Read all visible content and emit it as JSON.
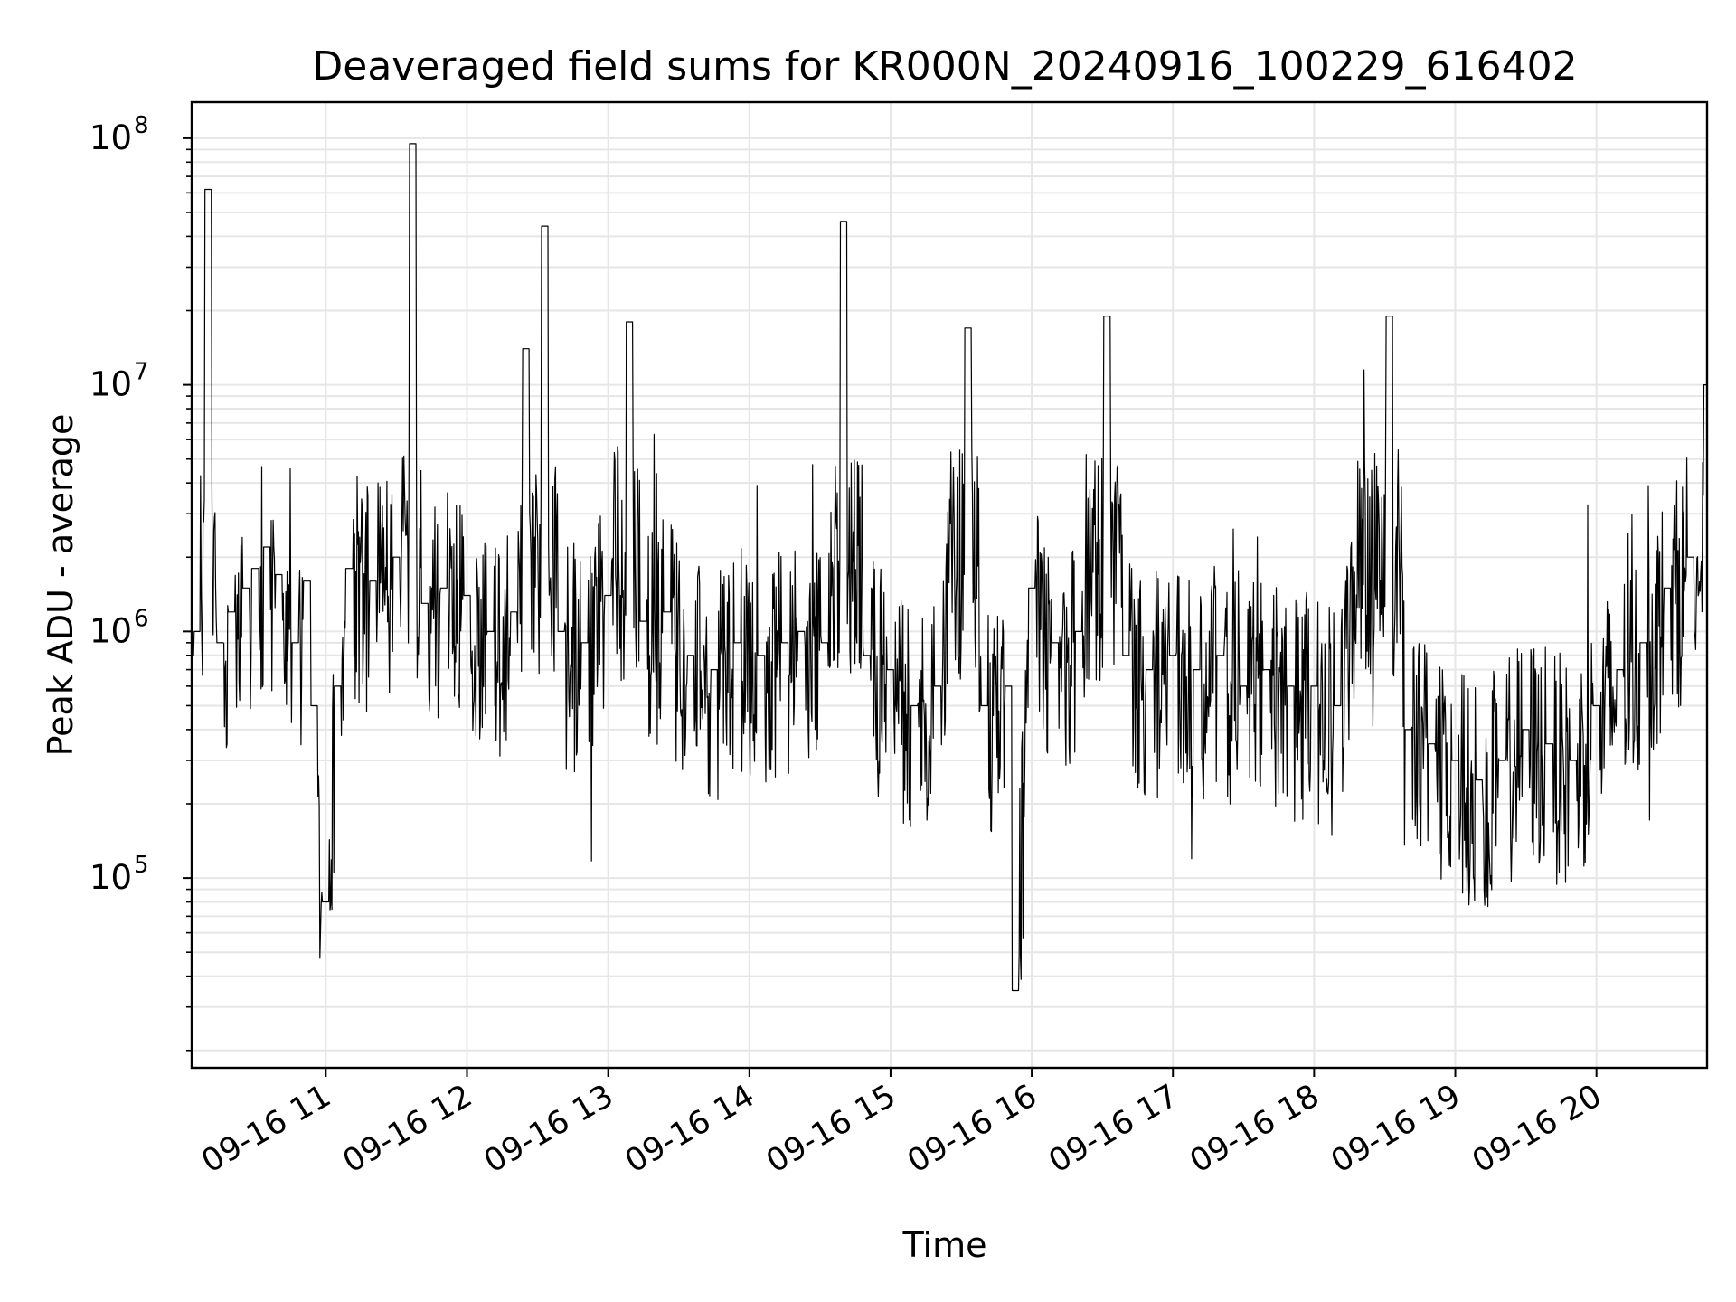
{
  "chart_data": {
    "type": "line",
    "title": "Deaveraged field sums for KR000N_20240916_100229_616402",
    "xlabel": "Time",
    "ylabel": "Peak ADU - average",
    "yscale": "log",
    "ylim": [
      17000,
      140000000
    ],
    "xlim": [
      "2024-09-16 10:03",
      "2024-09-16 20:47"
    ],
    "x_tick_labels": [
      "09-16 11",
      "09-16 12",
      "09-16 13",
      "09-16 14",
      "09-16 15",
      "09-16 16",
      "09-16 17",
      "09-16 18",
      "09-16 19",
      "09-16 20"
    ],
    "y_tick_labels": [
      {
        "base": "10",
        "exp": "5"
      },
      {
        "base": "10",
        "exp": "6"
      },
      {
        "base": "10",
        "exp": "7"
      },
      {
        "base": "10",
        "exp": "8"
      }
    ],
    "grid": true,
    "line_color": "#000000",
    "grid_color": "#e6e6e6",
    "series": [
      {
        "x": [
          "2024-09-16 10:03",
          "2024-09-16 10:05",
          "2024-09-16 10:10",
          "2024-09-16 10:15",
          "2024-09-16 10:20",
          "2024-09-16 10:26",
          "2024-09-16 10:30",
          "2024-09-16 10:35",
          "2024-09-16 10:40",
          "2024-09-16 10:47",
          "2024-09-16 10:52",
          "2024-09-16 10:55",
          "2024-09-16 11:00",
          "2024-09-16 11:05",
          "2024-09-16 11:10",
          "2024-09-16 11:20",
          "2024-09-16 11:30",
          "2024-09-16 11:37",
          "2024-09-16 11:42",
          "2024-09-16 11:50",
          "2024-09-16 12:00",
          "2024-09-16 12:10",
          "2024-09-16 12:20",
          "2024-09-16 12:25",
          "2024-09-16 12:33",
          "2024-09-16 12:40",
          "2024-09-16 12:50",
          "2024-09-16 13:00",
          "2024-09-16 13:09",
          "2024-09-16 13:15",
          "2024-09-16 13:25",
          "2024-09-16 13:35",
          "2024-09-16 13:45",
          "2024-09-16 13:55",
          "2024-09-16 14:05",
          "2024-09-16 14:15",
          "2024-09-16 14:22",
          "2024-09-16 14:32",
          "2024-09-16 14:40",
          "2024-09-16 14:50",
          "2024-09-16 15:00",
          "2024-09-16 15:10",
          "2024-09-16 15:20",
          "2024-09-16 15:33",
          "2024-09-16 15:40",
          "2024-09-16 15:50",
          "2024-09-16 15:53",
          "2024-09-16 16:00",
          "2024-09-16 16:10",
          "2024-09-16 16:20",
          "2024-09-16 16:32",
          "2024-09-16 16:40",
          "2024-09-16 16:50",
          "2024-09-16 17:00",
          "2024-09-16 17:10",
          "2024-09-16 17:20",
          "2024-09-16 17:30",
          "2024-09-16 17:40",
          "2024-09-16 17:50",
          "2024-09-16 18:00",
          "2024-09-16 18:10",
          "2024-09-16 18:32",
          "2024-09-16 18:40",
          "2024-09-16 18:50",
          "2024-09-16 19:00",
          "2024-09-16 19:10",
          "2024-09-16 19:20",
          "2024-09-16 19:30",
          "2024-09-16 19:40",
          "2024-09-16 19:50",
          "2024-09-16 20:00",
          "2024-09-16 20:10",
          "2024-09-16 20:20",
          "2024-09-16 20:30",
          "2024-09-16 20:40",
          "2024-09-16 20:47"
        ],
        "y": [
          800000,
          1000000,
          62000000,
          900000,
          1200000,
          1500000,
          1800000,
          2200000,
          1700000,
          900000,
          1600000,
          500000,
          80000,
          600000,
          1800000,
          1600000,
          2000000,
          95000000,
          1300000,
          1500000,
          1400000,
          1000000,
          1200000,
          14000000,
          44000000,
          1000000,
          900000,
          1400000,
          18000000,
          1100000,
          1200000,
          800000,
          700000,
          900000,
          800000,
          900000,
          1000000,
          900000,
          46000000,
          800000,
          700000,
          500000,
          600000,
          17000000,
          500000,
          600000,
          35000,
          1500000,
          900000,
          1000000,
          19000000,
          800000,
          700000,
          800000,
          700000,
          800000,
          600000,
          700000,
          600000,
          600000,
          500000,
          19000000,
          400000,
          350000,
          300000,
          250000,
          300000,
          400000,
          350000,
          300000,
          500000,
          700000,
          900000,
          1500000,
          2000000,
          10000000
        ]
      }
    ]
  }
}
